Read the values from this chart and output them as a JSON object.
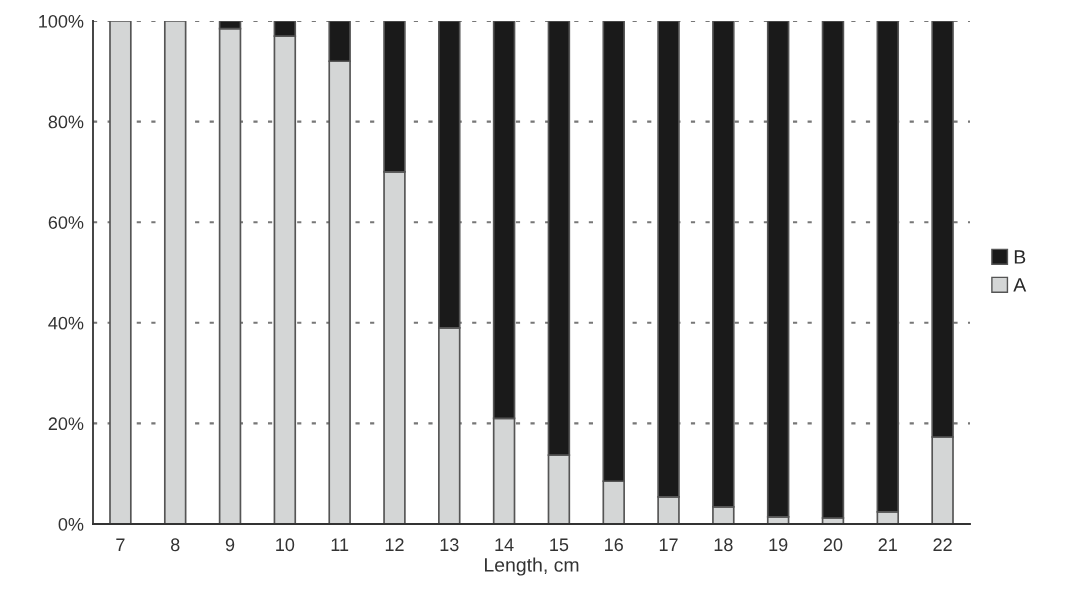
{
  "chart_data": {
    "type": "bar",
    "stacked": true,
    "xlabel": "Length, cm",
    "categories": [
      "7",
      "8",
      "9",
      "10",
      "11",
      "12",
      "13",
      "14",
      "15",
      "16",
      "17",
      "18",
      "19",
      "20",
      "21",
      "22"
    ],
    "series": [
      {
        "name": "A",
        "color": "#d4d6d6",
        "values": [
          100,
          100,
          98.5,
          97,
          92,
          70,
          39,
          21,
          13.7,
          8.5,
          5.4,
          3.4,
          1.4,
          1.2,
          2.4,
          17.3
        ]
      },
      {
        "name": "B",
        "color": "#1a1a1a",
        "values": [
          null,
          null,
          1.5,
          3,
          8,
          30,
          61,
          79,
          86.3,
          91.5,
          94.6,
          96.6,
          98.6,
          98.8,
          97.6,
          82.7
        ]
      }
    ],
    "ylim": [
      0,
      100
    ],
    "yticks": [
      {
        "value": 0,
        "label": "0%"
      },
      {
        "value": 20,
        "label": "20%"
      },
      {
        "value": 40,
        "label": "40%"
      },
      {
        "value": 60,
        "label": "60%"
      },
      {
        "value": 80,
        "label": "80%"
      },
      {
        "value": 100,
        "label": "100%"
      }
    ],
    "grid": "y",
    "legend": "right"
  }
}
